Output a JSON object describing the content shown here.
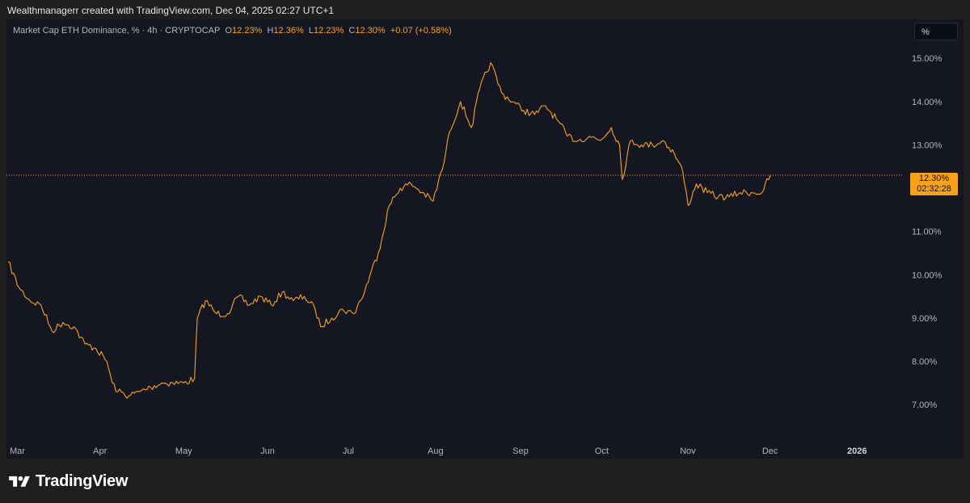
{
  "caption": "Wealthmanagerr created with TradingView.com, Dec 04, 2025 02:27 UTC+1",
  "legend": {
    "title": "Market Cap ETH Dominance, % · 4h · CRYPTOCAP",
    "o_label": "O",
    "o_value": "12.23%",
    "h_label": "H",
    "h_value": "12.36%",
    "l_label": "L",
    "l_value": "12.23%",
    "c_label": "C",
    "c_value": "12.30%",
    "change": "+0.07 (+0.58%)"
  },
  "scale_button": "%",
  "price_tag": {
    "value": "12.30%",
    "countdown": "02:32:28"
  },
  "brand": {
    "name": "TradingView",
    "logo_icon": "tradingview-logo-icon"
  },
  "colors": {
    "series": "#f7a21b",
    "background": "#141721",
    "axis_text": "#b2b5be"
  },
  "chart_data": {
    "type": "line",
    "title": "Market Cap ETH Dominance, % · 4h · CRYPTOCAP",
    "ylim": [
      6.2,
      15.9
    ],
    "y_ticks": [
      "7.00%",
      "8.00%",
      "9.00%",
      "10.00%",
      "11.00%",
      "12.00%",
      "13.00%",
      "14.00%",
      "15.00%"
    ],
    "x_ticks": [
      "Mar",
      "Apr",
      "May",
      "Jun",
      "Jul",
      "Aug",
      "Sep",
      "Oct",
      "Nov",
      "Dec",
      "2026"
    ],
    "last_value": 12.3,
    "grid": false,
    "series": [
      {
        "x": [
          "2025-03-01",
          "2025-03-05",
          "2025-03-09",
          "2025-03-13",
          "2025-03-17",
          "2025-03-21",
          "2025-03-25",
          "2025-03-29",
          "2025-04-02",
          "2025-04-06",
          "2025-04-08",
          "2025-04-10",
          "2025-04-14",
          "2025-04-18",
          "2025-04-22",
          "2025-04-26",
          "2025-04-30",
          "2025-05-04",
          "2025-05-08",
          "2025-05-09",
          "2025-05-12",
          "2025-05-16",
          "2025-05-20",
          "2025-05-24",
          "2025-05-28",
          "2025-06-01",
          "2025-06-05",
          "2025-06-09",
          "2025-06-13",
          "2025-06-17",
          "2025-06-21",
          "2025-06-23",
          "2025-06-27",
          "2025-07-01",
          "2025-07-05",
          "2025-07-09",
          "2025-07-11",
          "2025-07-14",
          "2025-07-18",
          "2025-07-22",
          "2025-07-26",
          "2025-07-30",
          "2025-08-03",
          "2025-08-07",
          "2025-08-09",
          "2025-08-13",
          "2025-08-17",
          "2025-08-20",
          "2025-08-24",
          "2025-08-28",
          "2025-09-01",
          "2025-09-05",
          "2025-09-09",
          "2025-09-13",
          "2025-09-17",
          "2025-09-21",
          "2025-09-25",
          "2025-09-29",
          "2025-10-03",
          "2025-10-07",
          "2025-10-10",
          "2025-10-11",
          "2025-10-14",
          "2025-10-18",
          "2025-10-22",
          "2025-10-26",
          "2025-10-30",
          "2025-11-02",
          "2025-11-04",
          "2025-11-07",
          "2025-11-11",
          "2025-11-15",
          "2025-11-19",
          "2025-11-23",
          "2025-11-27",
          "2025-12-01",
          "2025-12-04"
        ],
        "values": [
          10.3,
          9.7,
          9.4,
          9.3,
          8.7,
          8.9,
          8.8,
          8.4,
          8.3,
          8.0,
          7.5,
          7.3,
          7.2,
          7.3,
          7.4,
          7.5,
          7.5,
          7.5,
          7.6,
          9.0,
          9.4,
          9.1,
          9.1,
          9.5,
          9.3,
          9.5,
          9.3,
          9.6,
          9.4,
          9.5,
          9.2,
          8.8,
          9.0,
          9.2,
          9.1,
          9.6,
          10.0,
          10.5,
          11.6,
          12.0,
          12.1,
          11.9,
          11.7,
          12.6,
          13.3,
          14.0,
          13.4,
          14.3,
          14.9,
          14.2,
          14.0,
          13.8,
          13.7,
          13.9,
          13.6,
          13.2,
          13.1,
          13.2,
          13.1,
          13.4,
          13.0,
          12.2,
          13.1,
          13.0,
          13.0,
          13.1,
          12.8,
          12.4,
          11.6,
          12.1,
          11.9,
          11.8,
          11.8,
          11.9,
          11.9,
          11.9,
          12.3
        ]
      }
    ]
  }
}
